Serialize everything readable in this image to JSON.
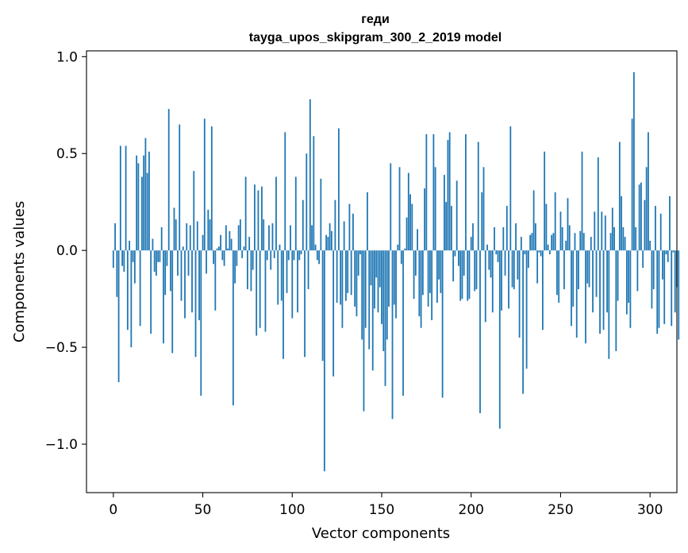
{
  "chart_data": {
    "type": "bar",
    "title_line1": "геди",
    "title_line2": "tayga_upos_skipgram_300_2_2019 model",
    "xlabel": "Vector components",
    "ylabel": "Components values",
    "xlim": [
      -15,
      315
    ],
    "ylim": [
      -1.25,
      1.03
    ],
    "xticks": [
      0,
      50,
      100,
      150,
      200,
      250,
      300
    ],
    "yticks": [
      -1.0,
      -0.5,
      0.0,
      0.5,
      1.0
    ],
    "xtick_labels": [
      "0",
      "50",
      "100",
      "150",
      "200",
      "250",
      "300"
    ],
    "ytick_labels": [
      "−1.0",
      "−0.5",
      "0.0",
      "0.5",
      "1.0"
    ],
    "bar_color": "#1f77b4",
    "values": [
      -0.09,
      0.14,
      -0.24,
      -0.68,
      0.54,
      -0.08,
      -0.11,
      0.54,
      -0.41,
      0.05,
      -0.5,
      -0.06,
      -0.17,
      0.49,
      0.45,
      -0.39,
      0.38,
      0.49,
      0.58,
      0.4,
      0.51,
      -0.43,
      0.06,
      -0.11,
      -0.13,
      -0.06,
      -0.06,
      0.12,
      -0.48,
      -0.23,
      -0.08,
      0.73,
      -0.21,
      -0.53,
      0.22,
      0.16,
      -0.13,
      0.65,
      -0.26,
      0.02,
      -0.35,
      0.14,
      -0.13,
      0.13,
      -0.32,
      0.41,
      -0.55,
      0.15,
      -0.36,
      -0.75,
      0.08,
      0.68,
      -0.12,
      0.21,
      0.16,
      0.64,
      -0.07,
      -0.31,
      0.01,
      0.02,
      0.08,
      -0.05,
      -0.08,
      0.13,
      0.01,
      0.1,
      0.06,
      -0.8,
      -0.17,
      -0.08,
      0.13,
      0.16,
      -0.04,
      0.02,
      0.38,
      -0.2,
      0.07,
      -0.21,
      -0.1,
      0.34,
      -0.44,
      0.31,
      -0.4,
      0.33,
      0.16,
      -0.42,
      -0.05,
      0.13,
      -0.1,
      0.14,
      -0.04,
      0.38,
      -0.28,
      0.03,
      -0.26,
      -0.56,
      0.61,
      -0.22,
      -0.05,
      0.13,
      -0.35,
      -0.05,
      0.38,
      -0.32,
      -0.05,
      -0.02,
      0.26,
      -0.55,
      0.5,
      -0.2,
      0.78,
      0.13,
      0.59,
      0.03,
      -0.05,
      -0.07,
      0.37,
      -0.57,
      -1.14,
      0.08,
      0.07,
      0.14,
      0.1,
      -0.65,
      0.26,
      -0.27,
      0.63,
      -0.28,
      -0.4,
      0.15,
      -0.26,
      -0.22,
      0.24,
      -0.23,
      0.19,
      -0.29,
      -0.34,
      -0.13,
      -0.02,
      -0.46,
      -0.83,
      -0.4,
      0.3,
      -0.51,
      -0.18,
      -0.62,
      -0.3,
      -0.14,
      -0.32,
      -0.19,
      -0.38,
      -0.52,
      -0.7,
      -0.46,
      -0.29,
      0.45,
      -0.87,
      -0.28,
      -0.35,
      0.03,
      0.43,
      -0.07,
      -0.75,
      0.01,
      0.17,
      0.4,
      0.29,
      0.24,
      -0.25,
      -0.13,
      0.11,
      -0.34,
      -0.4,
      -0.23,
      0.32,
      0.6,
      -0.29,
      -0.22,
      -0.36,
      0.6,
      0.43,
      -0.27,
      -0.15,
      -0.22,
      -0.76,
      0.39,
      0.25,
      0.57,
      0.61,
      0.23,
      -0.16,
      -0.03,
      0.36,
      -0.08,
      -0.26,
      -0.25,
      -0.13,
      0.6,
      -0.26,
      -0.25,
      0.07,
      0.14,
      -0.21,
      -0.2,
      0.56,
      -0.84,
      0.3,
      0.43,
      -0.37,
      0.03,
      -0.1,
      -0.14,
      -0.32,
      0.12,
      -0.02,
      -0.06,
      -0.92,
      -0.31,
      0.12,
      -0.13,
      0.23,
      -0.3,
      0.64,
      -0.19,
      -0.2,
      0.14,
      -0.15,
      -0.45,
      0.07,
      -0.74,
      -0.02,
      -0.61,
      -0.09,
      0.08,
      0.09,
      0.31,
      0.14,
      -0.17,
      -0.01,
      -0.03,
      -0.41,
      0.51,
      0.24,
      0.03,
      -0.02,
      0.08,
      0.09,
      0.3,
      -0.23,
      -0.27,
      0.2,
      0.12,
      -0.2,
      0.05,
      0.27,
      0.13,
      -0.39,
      -0.29,
      0.09,
      -0.45,
      -0.2,
      0.1,
      0.51,
      0.09,
      -0.48,
      -0.17,
      -0.19,
      0.07,
      -0.32,
      0.2,
      -0.24,
      0.48,
      -0.43,
      0.2,
      -0.41,
      0.18,
      -0.32,
      -0.56,
      0.09,
      0.22,
      0.12,
      -0.52,
      -0.26,
      0.56,
      0.28,
      0.12,
      0.07,
      -0.33,
      -0.27,
      -0.4,
      0.68,
      0.92,
      0.12,
      -0.21,
      0.34,
      0.35,
      -0.09,
      0.26,
      0.43,
      0.61,
      0.05,
      -0.3,
      -0.2,
      0.23,
      -0.43,
      -0.4,
      0.19,
      -0.15,
      -0.38,
      -0.02,
      -0.06,
      0.28,
      -0.39,
      -0.01,
      -0.32,
      -0.19,
      -0.46
    ]
  }
}
